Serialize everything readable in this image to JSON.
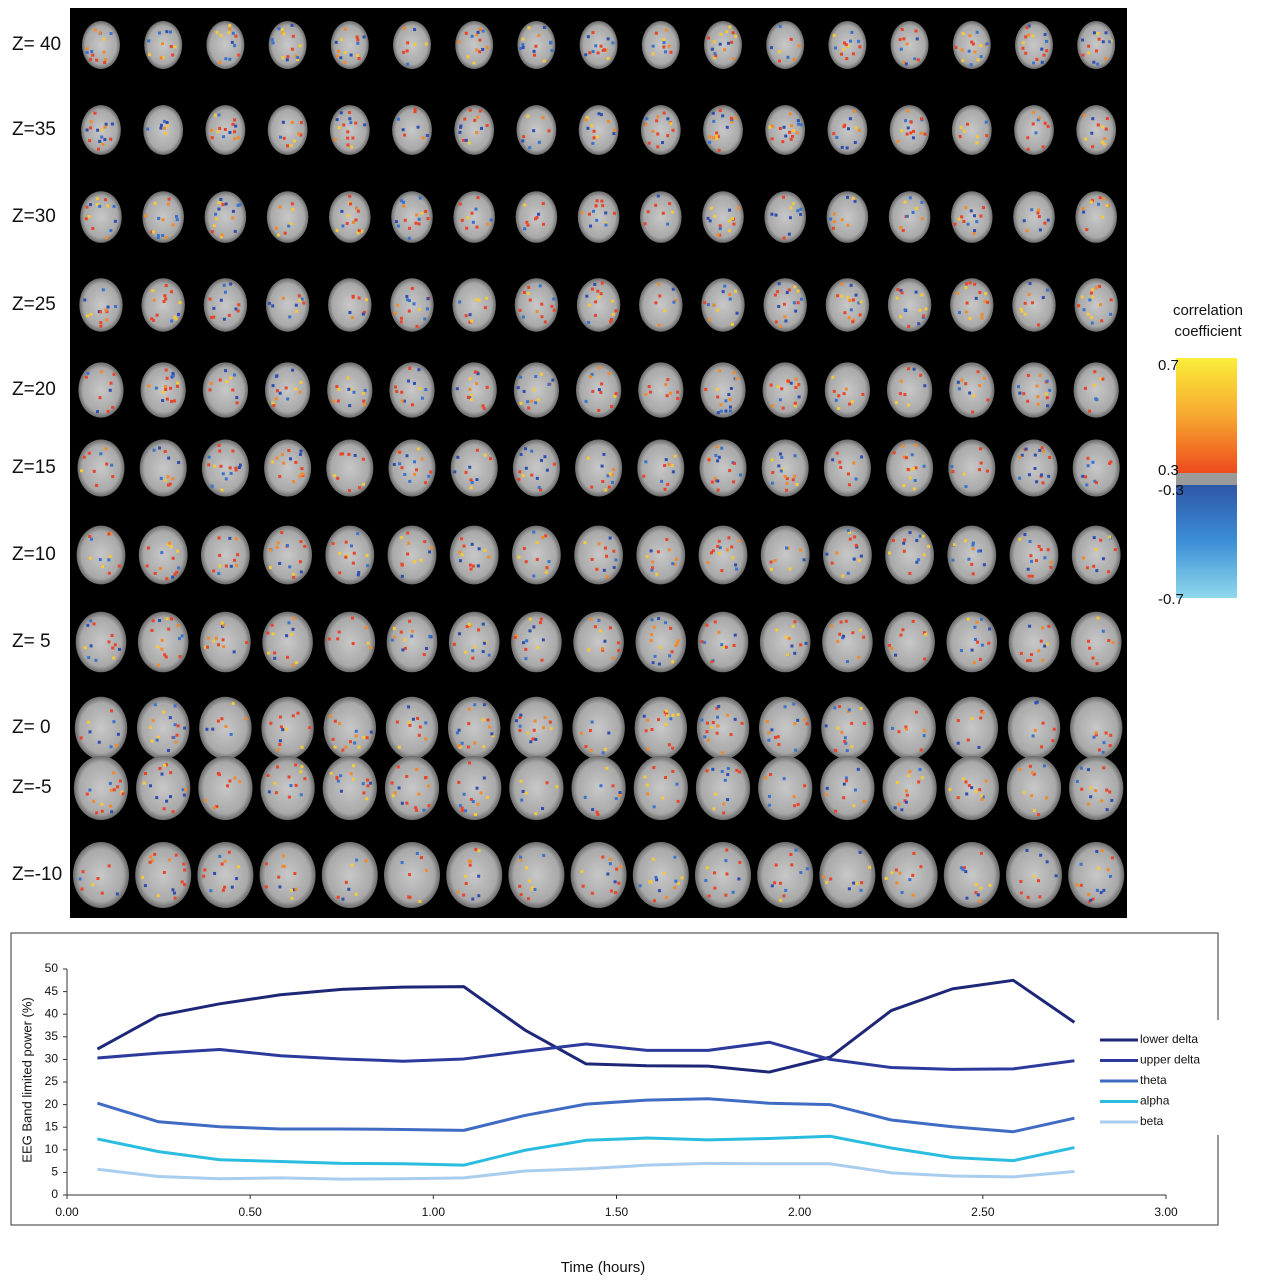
{
  "brain_grid": {
    "slice_labels": [
      "Z= 40",
      "Z=35",
      "Z=30",
      "Z=25",
      "Z=20",
      "Z=15",
      "Z=10",
      "Z= 5",
      "Z= 0",
      "Z=-5",
      "Z=-10"
    ]
  },
  "colorbar": {
    "title_lines": [
      "correlation",
      "coefficient"
    ],
    "ticks": [
      0.7,
      0.3,
      -0.3,
      -0.7
    ]
  },
  "chart_data": {
    "type": "line",
    "y_label": "EEG Band limited power (%)",
    "x_label": "Time (hours)",
    "x": [
      0.083,
      0.25,
      0.417,
      0.583,
      0.75,
      0.917,
      1.083,
      1.25,
      1.417,
      1.583,
      1.75,
      1.917,
      2.083,
      2.25,
      2.417,
      2.583,
      2.75
    ],
    "series": [
      {
        "name": "lower delta",
        "color": "#1e2777",
        "values": [
          32.3,
          39.7,
          42.3,
          44.3,
          45.5,
          46,
          46.1,
          36.5,
          29,
          28.6,
          28.5,
          27.2,
          30.5,
          40.8,
          45.6,
          47.5,
          38.2
        ]
      },
      {
        "name": "upper delta",
        "color": "#2c3a9c",
        "values": [
          30.3,
          31.4,
          32.2,
          30.8,
          30.1,
          29.6,
          30.1,
          31.8,
          33.4,
          32,
          32,
          33.8,
          30,
          28.2,
          27.8,
          27.9,
          29.7
        ]
      },
      {
        "name": "theta",
        "color": "#3f6cc2",
        "values": [
          20.3,
          16.2,
          15.1,
          14.6,
          14.6,
          14.5,
          14.3,
          17.6,
          20.1,
          21,
          21.3,
          20.3,
          20,
          16.6,
          15.1,
          14,
          17
        ]
      },
      {
        "name": "alpha",
        "color": "#2bbde0",
        "values": [
          12.4,
          9.6,
          7.8,
          7.4,
          7,
          6.9,
          6.6,
          9.9,
          12.1,
          12.6,
          12.2,
          12.5,
          13,
          10.4,
          8.3,
          7.6,
          10.5
        ]
      },
      {
        "name": "beta",
        "color": "#a8cdee",
        "values": [
          5.7,
          4.1,
          3.6,
          3.8,
          3.5,
          3.6,
          3.8,
          5.3,
          5.8,
          6.6,
          7,
          6.9,
          6.9,
          4.9,
          4.2,
          4,
          5.2
        ]
      }
    ],
    "xlim": [
      0,
      3
    ],
    "xticks": [
      {
        "value": 0,
        "label": "0.00"
      },
      {
        "value": 0.5,
        "label": "0.50"
      },
      {
        "value": 1,
        "label": "1.00"
      },
      {
        "value": 1.5,
        "label": "1.50"
      },
      {
        "value": 2,
        "label": "2.00"
      },
      {
        "value": 2.5,
        "label": "2.50"
      },
      {
        "value": 3,
        "label": "3.00"
      }
    ],
    "ylim": [
      0,
      50
    ],
    "yticks": [
      0,
      5,
      10,
      15,
      20,
      25,
      30,
      35,
      40,
      45,
      50
    ],
    "legend": "right"
  }
}
